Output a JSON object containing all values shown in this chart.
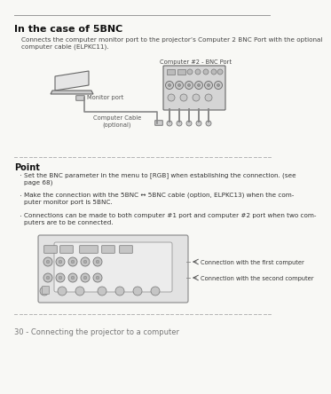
{
  "bg_color": "#f8f8f5",
  "title": "In the case of 5BNC",
  "subtitle": "Connects the computer monitor port to the projector’s Computer 2 BNC Port with the optional\ncomputer cable (ELPKC11).",
  "point_header": "Point",
  "bullets": [
    "Set the BNC parameter in the menu to [RGB] when establishing the connection. (see\npage 68)",
    "Make the connection with the 5BNC ↔ 5BNC cable (option, ELPKC13) when the com-\nputer monitor port is 5BNC.",
    "Connections can be made to both computer #1 port and computer #2 port when two com-\nputers are to be connected."
  ],
  "label_monitor_port": "Monitor port",
  "label_cable": "Computer Cable\n(optional)",
  "label_bnc_port": "Computer #2 - BNC Port",
  "label_conn1": "Connection with the first computer",
  "label_conn2": "Connection with the second computer",
  "footer": "30 - Connecting the projector to a computer"
}
